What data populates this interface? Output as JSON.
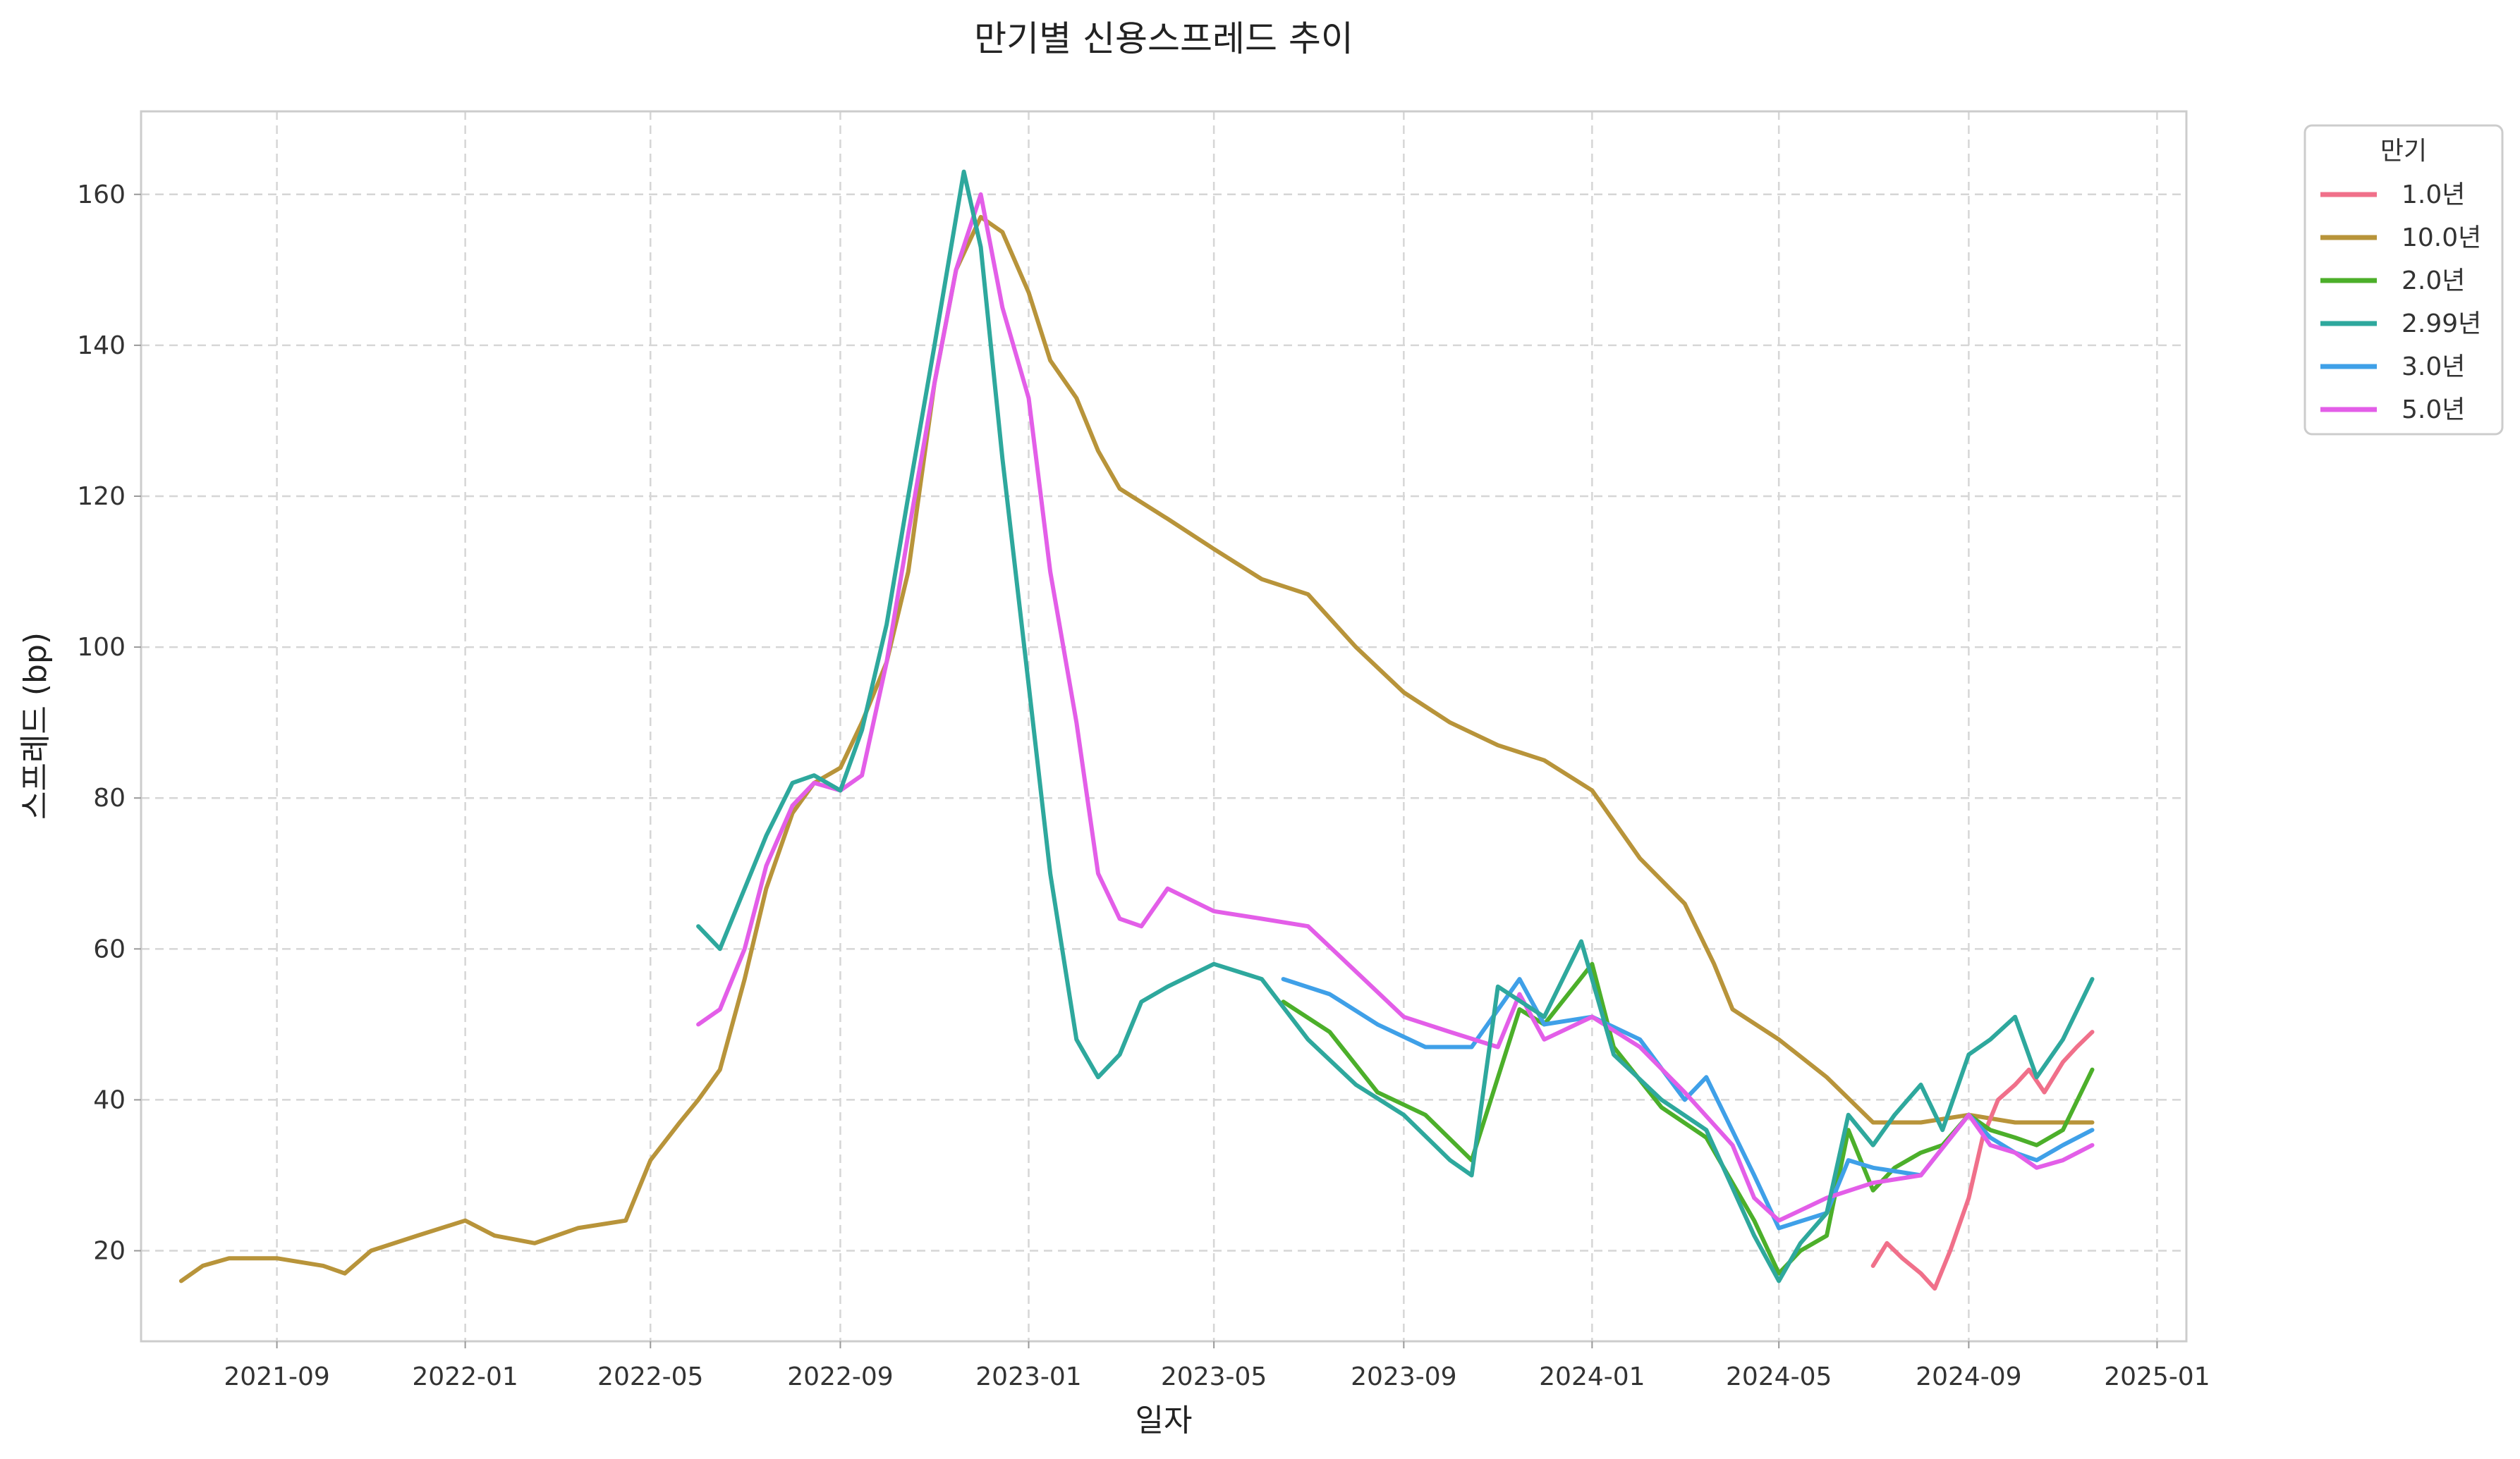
{
  "chart_data": {
    "type": "line",
    "title": "만기별 신용스프레드 추이",
    "xlabel": "일자",
    "ylabel": "스프레드 (bp)",
    "xlim": [
      "2021-06-05",
      "2025-01-20"
    ],
    "ylim": [
      8,
      171
    ],
    "x_ticks": [
      "2021-09",
      "2022-01",
      "2022-05",
      "2022-09",
      "2023-01",
      "2023-05",
      "2023-09",
      "2024-01",
      "2024-05",
      "2024-09",
      "2025-01"
    ],
    "y_ticks": [
      20,
      40,
      60,
      80,
      100,
      120,
      140,
      160
    ],
    "grid": true,
    "legend": {
      "title": "만기",
      "placement": "outside-top-right"
    },
    "series": [
      {
        "name": "1.0년",
        "color": "#f0708a",
        "points": [
          [
            "2024-07-01",
            18
          ],
          [
            "2024-07-10",
            21
          ],
          [
            "2024-07-20",
            19
          ],
          [
            "2024-08-01",
            17
          ],
          [
            "2024-08-10",
            15
          ],
          [
            "2024-08-20",
            20
          ],
          [
            "2024-09-01",
            27
          ],
          [
            "2024-09-10",
            35
          ],
          [
            "2024-09-20",
            40
          ],
          [
            "2024-10-01",
            42
          ],
          [
            "2024-10-10",
            44
          ],
          [
            "2024-10-20",
            41
          ],
          [
            "2024-11-01",
            45
          ],
          [
            "2024-11-10",
            47
          ],
          [
            "2024-11-20",
            49
          ]
        ]
      },
      {
        "name": "10.0년",
        "color": "#b8943a",
        "points": [
          [
            "2021-07-01",
            16
          ],
          [
            "2021-07-15",
            18
          ],
          [
            "2021-08-01",
            19
          ],
          [
            "2021-09-01",
            19
          ],
          [
            "2021-10-01",
            18
          ],
          [
            "2021-10-15",
            17
          ],
          [
            "2021-11-01",
            20
          ],
          [
            "2021-12-01",
            22
          ],
          [
            "2022-01-01",
            24
          ],
          [
            "2022-01-20",
            22
          ],
          [
            "2022-02-15",
            21
          ],
          [
            "2022-03-15",
            23
          ],
          [
            "2022-04-15",
            24
          ],
          [
            "2022-05-01",
            32
          ],
          [
            "2022-05-20",
            37
          ],
          [
            "2022-06-01",
            40
          ],
          [
            "2022-06-15",
            44
          ],
          [
            "2022-07-01",
            56
          ],
          [
            "2022-07-15",
            68
          ],
          [
            "2022-08-01",
            78
          ],
          [
            "2022-08-15",
            82
          ],
          [
            "2022-09-01",
            84
          ],
          [
            "2022-09-15",
            90
          ],
          [
            "2022-10-01",
            98
          ],
          [
            "2022-10-15",
            110
          ],
          [
            "2022-11-01",
            135
          ],
          [
            "2022-11-15",
            150
          ],
          [
            "2022-12-01",
            157
          ],
          [
            "2022-12-15",
            155
          ],
          [
            "2023-01-01",
            147
          ],
          [
            "2023-01-15",
            138
          ],
          [
            "2023-02-01",
            133
          ],
          [
            "2023-02-15",
            126
          ],
          [
            "2023-03-01",
            121
          ],
          [
            "2023-04-01",
            117
          ],
          [
            "2023-05-01",
            113
          ],
          [
            "2023-06-01",
            109
          ],
          [
            "2023-07-01",
            107
          ],
          [
            "2023-08-01",
            100
          ],
          [
            "2023-09-01",
            94
          ],
          [
            "2023-10-01",
            90
          ],
          [
            "2023-11-01",
            87
          ],
          [
            "2023-12-01",
            85
          ],
          [
            "2024-01-01",
            81
          ],
          [
            "2024-02-01",
            72
          ],
          [
            "2024-03-01",
            66
          ],
          [
            "2024-03-20",
            58
          ],
          [
            "2024-04-01",
            52
          ],
          [
            "2024-05-01",
            48
          ],
          [
            "2024-06-01",
            43
          ],
          [
            "2024-07-01",
            37
          ],
          [
            "2024-08-01",
            37
          ],
          [
            "2024-09-01",
            38
          ],
          [
            "2024-10-01",
            37
          ],
          [
            "2024-11-01",
            37
          ],
          [
            "2024-11-20",
            37
          ]
        ]
      },
      {
        "name": "2.0년",
        "color": "#4caf2a",
        "points": [
          [
            "2023-06-15",
            53
          ],
          [
            "2023-07-15",
            49
          ],
          [
            "2023-08-15",
            41
          ],
          [
            "2023-09-15",
            38
          ],
          [
            "2023-10-15",
            32
          ],
          [
            "2023-11-15",
            52
          ],
          [
            "2023-12-01",
            50
          ],
          [
            "2024-01-01",
            58
          ],
          [
            "2024-01-15",
            47
          ],
          [
            "2024-02-15",
            39
          ],
          [
            "2024-03-15",
            35
          ],
          [
            "2024-04-15",
            24
          ],
          [
            "2024-05-01",
            17
          ],
          [
            "2024-05-15",
            20
          ],
          [
            "2024-06-01",
            22
          ],
          [
            "2024-06-15",
            36
          ],
          [
            "2024-07-01",
            28
          ],
          [
            "2024-07-15",
            31
          ],
          [
            "2024-08-01",
            33
          ],
          [
            "2024-08-15",
            34
          ],
          [
            "2024-09-01",
            38
          ],
          [
            "2024-09-15",
            36
          ],
          [
            "2024-10-01",
            35
          ],
          [
            "2024-10-15",
            34
          ],
          [
            "2024-11-01",
            36
          ],
          [
            "2024-11-20",
            44
          ]
        ]
      },
      {
        "name": "2.99년",
        "color": "#2ea89d",
        "points": [
          [
            "2022-06-01",
            63
          ],
          [
            "2022-06-15",
            60
          ],
          [
            "2022-07-01",
            68
          ],
          [
            "2022-07-15",
            75
          ],
          [
            "2022-08-01",
            82
          ],
          [
            "2022-08-15",
            83
          ],
          [
            "2022-09-01",
            81
          ],
          [
            "2022-09-15",
            89
          ],
          [
            "2022-10-01",
            103
          ],
          [
            "2022-10-15",
            120
          ],
          [
            "2022-11-01",
            140
          ],
          [
            "2022-11-20",
            163
          ],
          [
            "2022-12-01",
            153
          ],
          [
            "2022-12-15",
            125
          ],
          [
            "2023-01-01",
            95
          ],
          [
            "2023-01-15",
            70
          ],
          [
            "2023-02-01",
            48
          ],
          [
            "2023-02-15",
            43
          ],
          [
            "2023-03-01",
            46
          ],
          [
            "2023-03-15",
            53
          ],
          [
            "2023-04-01",
            55
          ],
          [
            "2023-05-01",
            58
          ],
          [
            "2023-06-01",
            56
          ],
          [
            "2023-07-01",
            48
          ],
          [
            "2023-08-01",
            42
          ],
          [
            "2023-09-01",
            38
          ],
          [
            "2023-10-01",
            32
          ],
          [
            "2023-10-15",
            30
          ],
          [
            "2023-11-01",
            55
          ],
          [
            "2023-12-01",
            51
          ],
          [
            "2023-12-25",
            61
          ],
          [
            "2024-01-15",
            46
          ],
          [
            "2024-02-15",
            40
          ],
          [
            "2024-03-15",
            36
          ],
          [
            "2024-04-15",
            22
          ],
          [
            "2024-05-01",
            16
          ],
          [
            "2024-05-15",
            21
          ],
          [
            "2024-06-01",
            25
          ],
          [
            "2024-06-15",
            38
          ],
          [
            "2024-07-01",
            34
          ],
          [
            "2024-07-15",
            38
          ],
          [
            "2024-08-01",
            42
          ],
          [
            "2024-08-15",
            36
          ],
          [
            "2024-09-01",
            46
          ],
          [
            "2024-09-15",
            48
          ],
          [
            "2024-10-01",
            51
          ],
          [
            "2024-10-15",
            43
          ],
          [
            "2024-11-01",
            48
          ],
          [
            "2024-11-20",
            56
          ]
        ]
      },
      {
        "name": "3.0년",
        "color": "#3fa0e8",
        "points": [
          [
            "2023-06-15",
            56
          ],
          [
            "2023-07-15",
            54
          ],
          [
            "2023-08-15",
            50
          ],
          [
            "2023-09-15",
            47
          ],
          [
            "2023-10-15",
            47
          ],
          [
            "2023-11-15",
            56
          ],
          [
            "2023-12-01",
            50
          ],
          [
            "2024-01-01",
            51
          ],
          [
            "2024-02-01",
            48
          ],
          [
            "2024-03-01",
            40
          ],
          [
            "2024-03-15",
            43
          ],
          [
            "2024-04-15",
            30
          ],
          [
            "2024-05-01",
            23
          ],
          [
            "2024-06-01",
            25
          ],
          [
            "2024-06-15",
            32
          ],
          [
            "2024-07-01",
            31
          ],
          [
            "2024-08-01",
            30
          ],
          [
            "2024-09-01",
            38
          ],
          [
            "2024-09-15",
            35
          ],
          [
            "2024-10-01",
            33
          ],
          [
            "2024-10-15",
            32
          ],
          [
            "2024-11-01",
            34
          ],
          [
            "2024-11-20",
            36
          ]
        ]
      },
      {
        "name": "5.0년",
        "color": "#e35ee8",
        "points": [
          [
            "2022-06-01",
            50
          ],
          [
            "2022-06-15",
            52
          ],
          [
            "2022-07-01",
            60
          ],
          [
            "2022-07-15",
            71
          ],
          [
            "2022-08-01",
            79
          ],
          [
            "2022-08-15",
            82
          ],
          [
            "2022-09-01",
            81
          ],
          [
            "2022-09-15",
            83
          ],
          [
            "2022-10-01",
            98
          ],
          [
            "2022-10-15",
            115
          ],
          [
            "2022-11-01",
            135
          ],
          [
            "2022-11-15",
            150
          ],
          [
            "2022-12-01",
            160
          ],
          [
            "2022-12-15",
            145
          ],
          [
            "2023-01-01",
            133
          ],
          [
            "2023-01-15",
            110
          ],
          [
            "2023-02-01",
            90
          ],
          [
            "2023-02-15",
            70
          ],
          [
            "2023-03-01",
            64
          ],
          [
            "2023-03-15",
            63
          ],
          [
            "2023-04-01",
            68
          ],
          [
            "2023-05-01",
            65
          ],
          [
            "2023-06-01",
            64
          ],
          [
            "2023-07-01",
            63
          ],
          [
            "2023-08-01",
            57
          ],
          [
            "2023-09-01",
            51
          ],
          [
            "2023-10-01",
            49
          ],
          [
            "2023-11-01",
            47
          ],
          [
            "2023-11-15",
            54
          ],
          [
            "2023-12-01",
            48
          ],
          [
            "2024-01-01",
            51
          ],
          [
            "2024-02-01",
            47
          ],
          [
            "2024-03-01",
            41
          ],
          [
            "2024-04-01",
            34
          ],
          [
            "2024-04-15",
            27
          ],
          [
            "2024-05-01",
            24
          ],
          [
            "2024-06-01",
            27
          ],
          [
            "2024-07-01",
            29
          ],
          [
            "2024-08-01",
            30
          ],
          [
            "2024-09-01",
            38
          ],
          [
            "2024-09-15",
            34
          ],
          [
            "2024-10-01",
            33
          ],
          [
            "2024-10-15",
            31
          ],
          [
            "2024-11-01",
            32
          ],
          [
            "2024-11-20",
            34
          ]
        ]
      }
    ]
  }
}
